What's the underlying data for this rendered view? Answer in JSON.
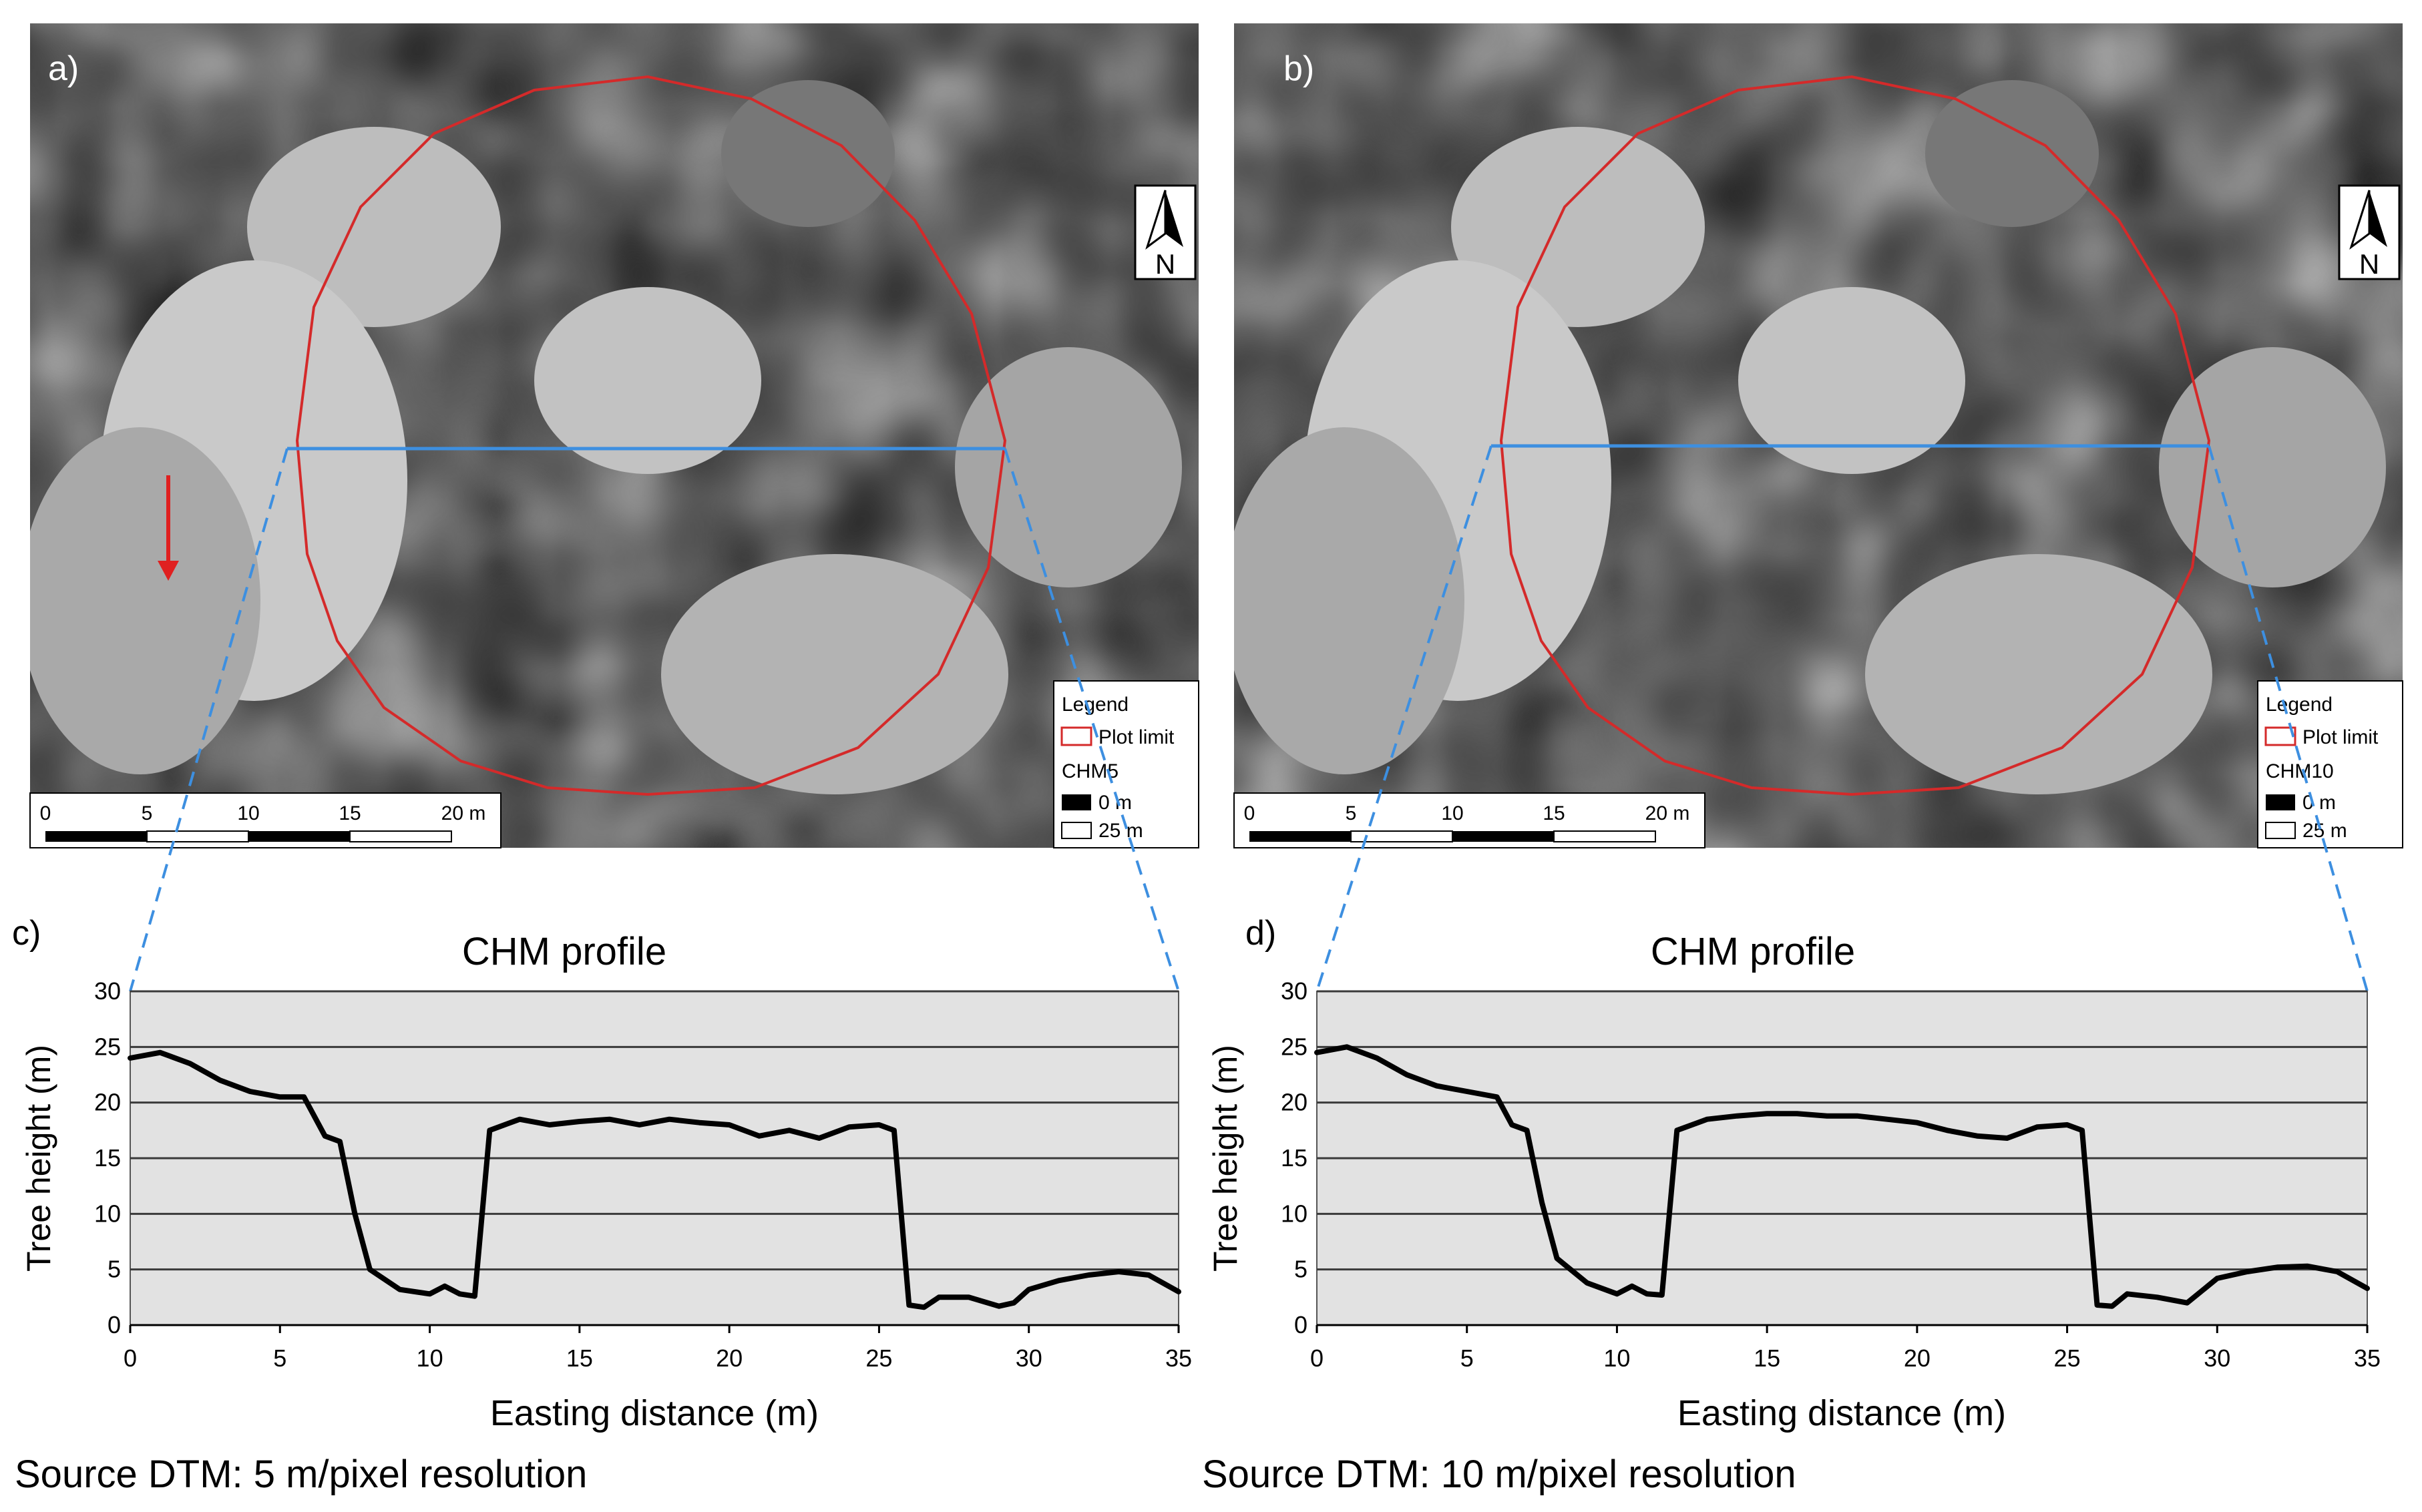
{
  "panels": [
    {
      "map_letter": "a)",
      "profile_letter": "c)",
      "legend": {
        "title": "Legend",
        "plot_limit": "Plot limit",
        "chm": "CHM5",
        "low": "0 m",
        "high": "25 m"
      },
      "north": "N",
      "scale_labels": [
        "0",
        "5",
        "10",
        "15",
        "20 m"
      ],
      "source": "Source DTM: 5 m/pixel resolution"
    },
    {
      "map_letter": "b)",
      "profile_letter": "d)",
      "legend": {
        "title": "Legend",
        "plot_limit": "Plot limit",
        "chm": "CHM10",
        "low": "0 m",
        "high": "25 m"
      },
      "north": "N",
      "scale_labels": [
        "0",
        "5",
        "10",
        "15",
        "20 m"
      ],
      "source": "Source DTM: 10 m/pixel resolution"
    }
  ],
  "colors": {
    "plot_limit": "#d42a2a",
    "transect": "#3d8fe0",
    "plot_bg": "#e2e2e2",
    "line": "#000000",
    "arrow": "#e02020"
  },
  "chart_data": [
    {
      "type": "line",
      "title": "CHM profile",
      "xlabel": "Easting distance (m)",
      "ylabel": "Tree height (m)",
      "xlim": [
        0,
        35
      ],
      "ylim": [
        0,
        30
      ],
      "xticks": [
        0,
        5,
        10,
        15,
        20,
        25,
        30,
        35
      ],
      "yticks": [
        0,
        5,
        10,
        15,
        20,
        25,
        30
      ],
      "series": [
        {
          "name": "CHM5",
          "x": [
            0,
            1,
            2,
            3,
            4,
            5,
            5.8,
            6.5,
            7,
            7.5,
            8,
            9,
            10,
            10.5,
            11,
            11.5,
            12,
            13,
            14,
            15,
            16,
            17,
            18,
            19,
            20,
            21,
            22,
            23,
            24,
            25,
            25.5,
            26,
            26.5,
            27,
            28,
            29,
            29.5,
            30,
            31,
            32,
            33,
            34,
            35
          ],
          "y": [
            24,
            24.5,
            23.5,
            22,
            21,
            20.5,
            20.5,
            17,
            16.5,
            10,
            5,
            3.2,
            2.8,
            3.5,
            2.8,
            2.6,
            17.5,
            18.5,
            18,
            18.3,
            18.5,
            18,
            18.5,
            18.2,
            18,
            17,
            17.5,
            16.8,
            17.8,
            18,
            17.5,
            1.8,
            1.6,
            2.5,
            2.5,
            1.7,
            2,
            3.2,
            4,
            4.5,
            4.8,
            4.5,
            3
          ]
        }
      ]
    },
    {
      "type": "line",
      "title": "CHM profile",
      "xlabel": "Easting distance (m)",
      "ylabel": "Tree height (m)",
      "xlim": [
        0,
        35
      ],
      "ylim": [
        0,
        30
      ],
      "xticks": [
        0,
        5,
        10,
        15,
        20,
        25,
        30,
        35
      ],
      "yticks": [
        0,
        5,
        10,
        15,
        20,
        25,
        30
      ],
      "series": [
        {
          "name": "CHM10",
          "x": [
            0,
            1,
            2,
            3,
            4,
            5,
            6,
            6.5,
            7,
            7.5,
            8,
            9,
            10,
            10.5,
            11,
            11.5,
            12,
            13,
            14,
            15,
            16,
            17,
            18,
            19,
            20,
            21,
            22,
            23,
            24,
            25,
            25.5,
            26,
            26.5,
            27,
            28,
            29,
            30,
            31,
            32,
            33,
            34,
            35
          ],
          "y": [
            24.5,
            25,
            24,
            22.5,
            21.5,
            21,
            20.5,
            18,
            17.5,
            11,
            6,
            3.8,
            2.8,
            3.5,
            2.8,
            2.7,
            17.5,
            18.5,
            18.8,
            19,
            19,
            18.8,
            18.8,
            18.5,
            18.2,
            17.5,
            17,
            16.8,
            17.8,
            18,
            17.5,
            1.8,
            1.7,
            2.8,
            2.5,
            2,
            4.2,
            4.8,
            5.2,
            5.3,
            4.8,
            3.3
          ]
        }
      ]
    }
  ]
}
